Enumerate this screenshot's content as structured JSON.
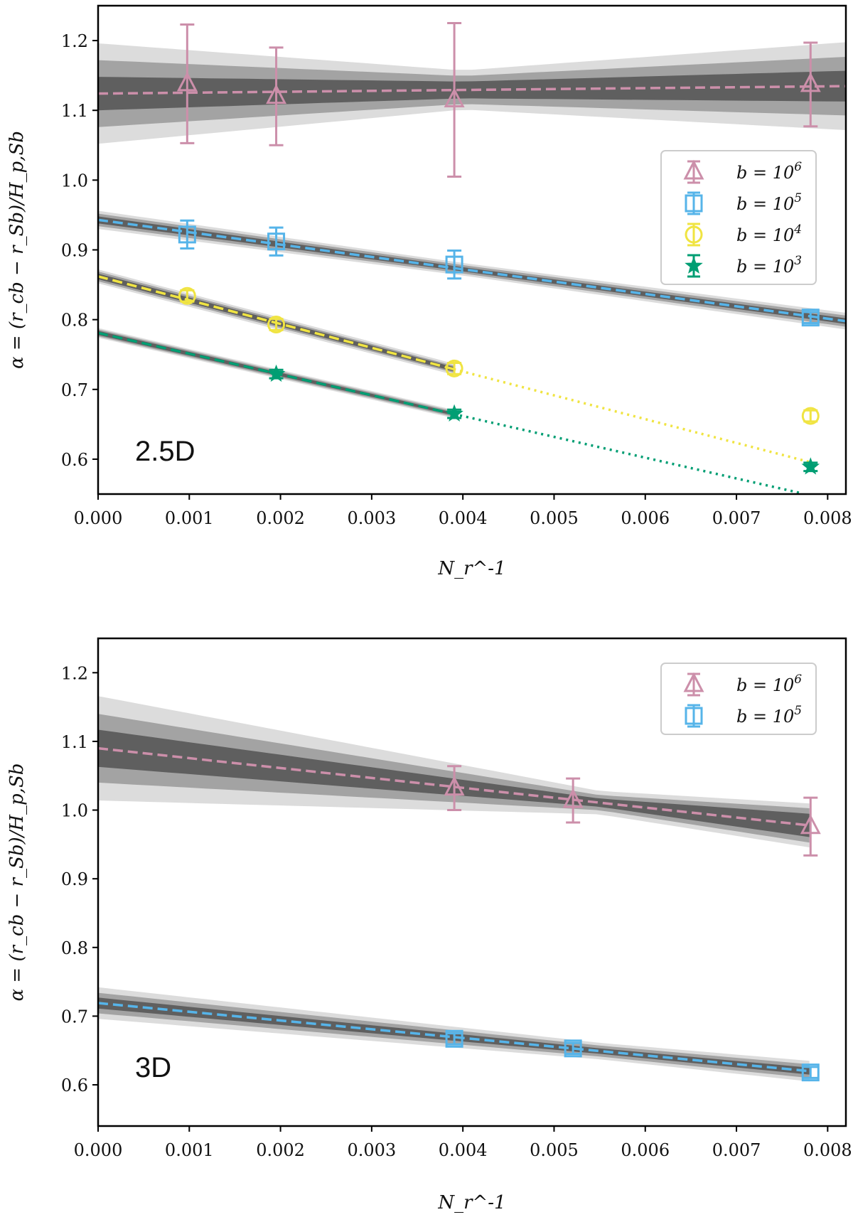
{
  "colors": {
    "b1e6": "#cc8faa",
    "b1e5": "#56b4e9",
    "b1e4": "#f0e442",
    "b1e3": "#009e73",
    "band_inner": "#5f5f5f",
    "band_mid": "#a3a3a3",
    "band_outer": "#dcdcdc"
  },
  "chart_data": [
    {
      "type": "scatter",
      "panel_label": "2.5D",
      "xlabel": "N_r^-1",
      "ylabel": "α = (r_cb − r_Sb)/H_p,Sb",
      "xlim": [
        0.0,
        0.0082
      ],
      "ylim": [
        0.55,
        1.25
      ],
      "xticks": [
        0.0,
        0.001,
        0.002,
        0.003,
        0.004,
        0.005,
        0.006,
        0.007,
        0.008
      ],
      "xtick_labels": [
        "0.000",
        "0.001",
        "0.002",
        "0.003",
        "0.004",
        "0.005",
        "0.006",
        "0.007",
        "0.008"
      ],
      "yticks": [
        0.6,
        0.7,
        0.8,
        0.9,
        1.0,
        1.1,
        1.2
      ],
      "ytick_labels": [
        "0.6",
        "0.7",
        "0.8",
        "0.9",
        "1.0",
        "1.1",
        "1.2"
      ],
      "legend": {
        "position": "right",
        "entries": [
          "b1e6",
          "b1e5",
          "b1e4",
          "b1e3"
        ]
      },
      "series": [
        {
          "key": "b1e6",
          "name": "b = 10",
          "exponent": "6",
          "marker": "triangle",
          "x": [
            0.000977,
            0.001953,
            0.003906,
            0.0078125
          ],
          "y": [
            1.138,
            1.12,
            1.115,
            1.137
          ],
          "err": [
            0.085,
            0.07,
            0.11,
            0.06
          ],
          "fit": {
            "intercept": 1.124,
            "slope": 1.3,
            "x_max": 0.0082,
            "band": [
              [
                0.0,
                0.024,
                0.048,
                0.072
              ],
              [
                0.004,
                0.012,
                0.02,
                0.028
              ],
              [
                0.0082,
                0.022,
                0.042,
                0.063
              ]
            ]
          }
        },
        {
          "key": "b1e5",
          "name": "b = 10",
          "exponent": "5",
          "marker": "square",
          "x": [
            0.000977,
            0.001953,
            0.003906,
            0.0078125
          ],
          "y": [
            0.922,
            0.912,
            0.879,
            0.803
          ],
          "err": [
            0.02,
            0.02,
            0.02,
            0.008
          ],
          "fit": {
            "intercept": 0.943,
            "slope": -17.7,
            "x_max": 0.0082,
            "band": [
              [
                0.0,
                0.005,
                0.009,
                0.013
              ],
              [
                0.004,
                0.003,
                0.006,
                0.009
              ],
              [
                0.0082,
                0.004,
                0.008,
                0.012
              ]
            ]
          }
        },
        {
          "key": "b1e4",
          "name": "b = 10",
          "exponent": "4",
          "marker": "circle",
          "x": [
            0.000977,
            0.001953,
            0.003906,
            0.0078125
          ],
          "y": [
            0.834,
            0.793,
            0.73,
            0.662
          ],
          "err": [
            0.008,
            0.008,
            0.008,
            0.008
          ],
          "fit": {
            "intercept": 0.862,
            "slope": -34.1,
            "x_max": 0.0039,
            "extrap_to": 0.0078125,
            "band": [
              [
                0.0,
                0.004,
                0.007,
                0.01
              ],
              [
                0.0039,
                0.003,
                0.005,
                0.008
              ]
            ]
          }
        },
        {
          "key": "b1e3",
          "name": "b = 10",
          "exponent": "3",
          "marker": "star",
          "x": [
            0.001953,
            0.003906,
            0.0078125
          ],
          "y": [
            0.722,
            0.665,
            0.589
          ],
          "err": [
            0.006,
            0.006,
            0.006
          ],
          "fit": {
            "intercept": 0.781,
            "slope": -29.8,
            "x_max": 0.0039,
            "extrap_to": 0.0077,
            "band": [
              [
                0.0,
                0.003,
                0.005,
                0.007
              ],
              [
                0.0039,
                0.002,
                0.004,
                0.006
              ]
            ]
          }
        }
      ]
    },
    {
      "type": "scatter",
      "panel_label": "3D",
      "xlabel": "N_r^-1",
      "ylabel": "α = (r_cb − r_Sb)/H_p,Sb",
      "xlim": [
        0.0,
        0.0082
      ],
      "ylim": [
        0.54,
        1.25
      ],
      "xticks": [
        0.0,
        0.001,
        0.002,
        0.003,
        0.004,
        0.005,
        0.006,
        0.007,
        0.008
      ],
      "xtick_labels": [
        "0.000",
        "0.001",
        "0.002",
        "0.003",
        "0.004",
        "0.005",
        "0.006",
        "0.007",
        "0.008"
      ],
      "yticks": [
        0.6,
        0.7,
        0.8,
        0.9,
        1.0,
        1.1,
        1.2
      ],
      "ytick_labels": [
        "0.6",
        "0.7",
        "0.8",
        "0.9",
        "1.0",
        "1.1",
        "1.2"
      ],
      "legend": {
        "position": "top-right",
        "entries": [
          "b1e6",
          "b1e5"
        ]
      },
      "series": [
        {
          "key": "b1e6",
          "name": "b = 10",
          "exponent": "6",
          "marker": "triangle",
          "x": [
            0.003906,
            0.005208,
            0.0078125
          ],
          "y": [
            1.032,
            1.014,
            0.976
          ],
          "err": [
            0.032,
            0.032,
            0.042
          ],
          "fit": {
            "intercept": 1.09,
            "slope": -14.4,
            "x_max": 0.0078,
            "band": [
              [
                0.0,
                0.027,
                0.05,
                0.076
              ],
              [
                0.0055,
                0.006,
                0.011,
                0.017
              ],
              [
                0.0078,
                0.017,
                0.025,
                0.032
              ]
            ]
          }
        },
        {
          "key": "b1e5",
          "name": "b = 10",
          "exponent": "5",
          "marker": "square",
          "x": [
            0.003906,
            0.005208,
            0.0078125
          ],
          "y": [
            0.667,
            0.653,
            0.618
          ],
          "err": [
            0.008,
            0.008,
            0.008
          ],
          "fit": {
            "intercept": 0.719,
            "slope": -12.7,
            "x_max": 0.0078,
            "band": [
              [
                0.0,
                0.008,
                0.015,
                0.023
              ],
              [
                0.0055,
                0.004,
                0.008,
                0.012
              ],
              [
                0.0078,
                0.005,
                0.01,
                0.015
              ]
            ]
          }
        }
      ]
    }
  ]
}
